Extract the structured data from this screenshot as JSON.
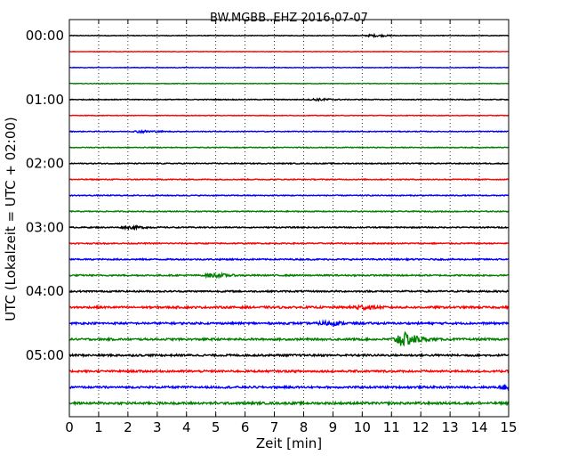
{
  "chart_data": {
    "type": "line",
    "title": "BW.MGBB..EHZ 2016-07-07",
    "xlabel": "Zeit  [min]",
    "ylabel": "UTC (Lokalzeit = UTC + 02:00)",
    "xlim": [
      0,
      15
    ],
    "x_ticks": [
      0,
      1,
      2,
      3,
      4,
      5,
      6,
      7,
      8,
      9,
      10,
      11,
      12,
      13,
      14,
      15
    ],
    "x_tick_labels": [
      "0",
      "1",
      "2",
      "3",
      "4",
      "5",
      "6",
      "7",
      "8",
      "9",
      "10",
      "11",
      "12",
      "13",
      "14",
      "15"
    ],
    "y_tick_labels": [
      "00:00",
      "01:00",
      "02:00",
      "03:00",
      "04:00",
      "05:00"
    ],
    "minutes_per_trace": 15,
    "grid": "vertical-dotted",
    "trace_colors": [
      "#000000",
      "#ff0000",
      "#0000ff",
      "#008000"
    ],
    "traces": [
      {
        "start": "00:00",
        "noise": 0.15,
        "events": [
          {
            "minute": 10.3,
            "amplitude": 0.45
          }
        ]
      },
      {
        "start": "00:15",
        "noise": 0.12,
        "events": []
      },
      {
        "start": "00:30",
        "noise": 0.15,
        "events": []
      },
      {
        "start": "00:45",
        "noise": 0.15,
        "events": []
      },
      {
        "start": "01:00",
        "noise": 0.2,
        "events": [
          {
            "minute": 8.4,
            "amplitude": 0.45
          }
        ]
      },
      {
        "start": "01:15",
        "noise": 0.15,
        "events": []
      },
      {
        "start": "01:30",
        "noise": 0.2,
        "events": [
          {
            "minute": 2.4,
            "amplitude": 0.5
          }
        ]
      },
      {
        "start": "01:45",
        "noise": 0.2,
        "events": []
      },
      {
        "start": "02:00",
        "noise": 0.25,
        "events": []
      },
      {
        "start": "02:15",
        "noise": 0.25,
        "events": []
      },
      {
        "start": "02:30",
        "noise": 0.25,
        "events": []
      },
      {
        "start": "02:45",
        "noise": 0.25,
        "events": []
      },
      {
        "start": "03:00",
        "noise": 0.3,
        "events": [
          {
            "minute": 2.0,
            "amplitude": 0.5
          }
        ]
      },
      {
        "start": "03:15",
        "noise": 0.3,
        "events": []
      },
      {
        "start": "03:30",
        "noise": 0.35,
        "events": []
      },
      {
        "start": "03:45",
        "noise": 0.35,
        "events": [
          {
            "minute": 4.8,
            "amplitude": 0.8
          }
        ]
      },
      {
        "start": "04:00",
        "noise": 0.4,
        "events": []
      },
      {
        "start": "04:15",
        "noise": 0.5,
        "events": [
          {
            "minute": 9.8,
            "amplitude": 0.9
          }
        ]
      },
      {
        "start": "04:30",
        "noise": 0.5,
        "events": [
          {
            "minute": 8.7,
            "amplitude": 0.8
          }
        ]
      },
      {
        "start": "04:45",
        "noise": 0.5,
        "events": [
          {
            "minute": 11.3,
            "amplitude": 3.2
          }
        ]
      },
      {
        "start": "05:00",
        "noise": 0.5,
        "events": []
      },
      {
        "start": "05:15",
        "noise": 0.5,
        "events": []
      },
      {
        "start": "05:30",
        "noise": 0.5,
        "events": [
          {
            "minute": 14.9,
            "amplitude": 1.0
          }
        ]
      },
      {
        "start": "05:45",
        "noise": 0.55,
        "events": []
      }
    ]
  }
}
